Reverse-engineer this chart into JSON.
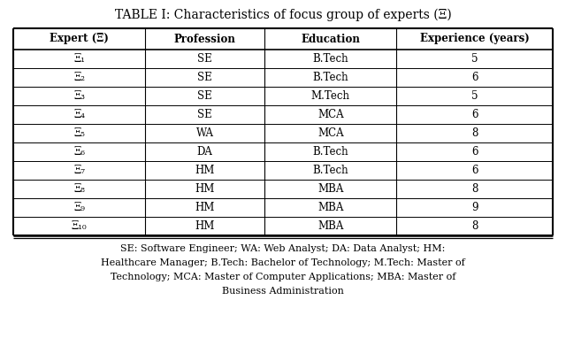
{
  "title": "TABLE I: Characteristics of focus group of experts (Ξ)",
  "col_headers": [
    "Expert (Ξ)",
    "Profession",
    "Education",
    "Experience (years)"
  ],
  "rows": [
    [
      "Ξ₁",
      "SE",
      "B.Tech",
      "5"
    ],
    [
      "Ξ₂",
      "SE",
      "B.Tech",
      "6"
    ],
    [
      "Ξ₃",
      "SE",
      "M.Tech",
      "5"
    ],
    [
      "Ξ₄",
      "SE",
      "MCA",
      "6"
    ],
    [
      "Ξ₅",
      "WA",
      "MCA",
      "8"
    ],
    [
      "Ξ₆",
      "DA",
      "B.Tech",
      "6"
    ],
    [
      "Ξ₇",
      "HM",
      "B.Tech",
      "6"
    ],
    [
      "Ξ₈",
      "HM",
      "MBA",
      "8"
    ],
    [
      "Ξ₉",
      "HM",
      "MBA",
      "9"
    ],
    [
      "Ξ₁₀",
      "HM",
      "MBA",
      "8"
    ]
  ],
  "footnote_lines": [
    "SE: Software Engineer; WA: Web Analyst; DA: Data Analyst; HM:",
    "Healthcare Manager; B.Tech: Bachelor of Technology; M.Tech: Master of",
    "Technology; MCA: Master of Computer Applications; MBA: Master of",
    "Business Administration"
  ],
  "bg_color": "#ffffff",
  "text_color": "#000000",
  "header_fontsize": 8.5,
  "cell_fontsize": 8.5,
  "title_fontsize": 10,
  "footnote_fontsize": 8.0
}
